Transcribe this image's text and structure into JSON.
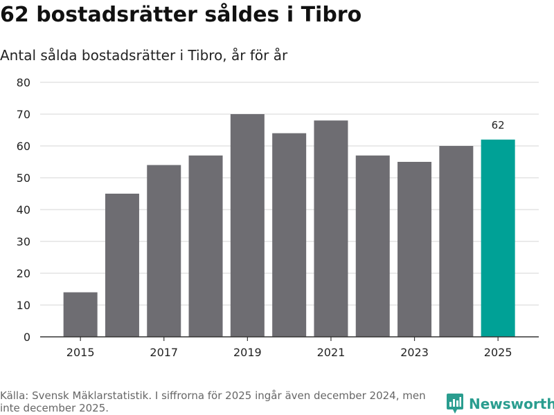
{
  "header": {
    "title": "62 bostadsrätter såldes i Tibro",
    "subtitle": "Antal sålda bostadsrätter i Tibro, år för år"
  },
  "footer": {
    "source": "Källa: Svensk Mäklarstatistik. I siffrorna för 2025 ingår även december 2024, men inte december 2025.",
    "brand": "Newsworthy"
  },
  "colors": {
    "bar": "#6e6d72",
    "highlight": "#00a196",
    "grid": "#dddddd",
    "axis": "#333333",
    "brand": "#2a9d8f"
  },
  "chart_data": {
    "type": "bar",
    "title": "62 bostadsrätter såldes i Tibro",
    "subtitle": "Antal sålda bostadsrätter i Tibro, år för år",
    "categories": [
      "2015",
      "2016",
      "2017",
      "2018",
      "2019",
      "2020",
      "2021",
      "2022",
      "2023",
      "2024",
      "2025"
    ],
    "values": [
      14,
      45,
      54,
      57,
      70,
      64,
      68,
      57,
      55,
      60,
      62
    ],
    "x_tick_labels": [
      "2015",
      "2017",
      "2019",
      "2021",
      "2023",
      "2025"
    ],
    "y_ticks": [
      0,
      10,
      20,
      30,
      40,
      50,
      60,
      70,
      80
    ],
    "ylim": [
      0,
      80
    ],
    "grid": true,
    "highlight_category": "2025",
    "data_labels": [
      {
        "category": "2025",
        "text": "62"
      }
    ],
    "xlabel": "",
    "ylabel": ""
  }
}
